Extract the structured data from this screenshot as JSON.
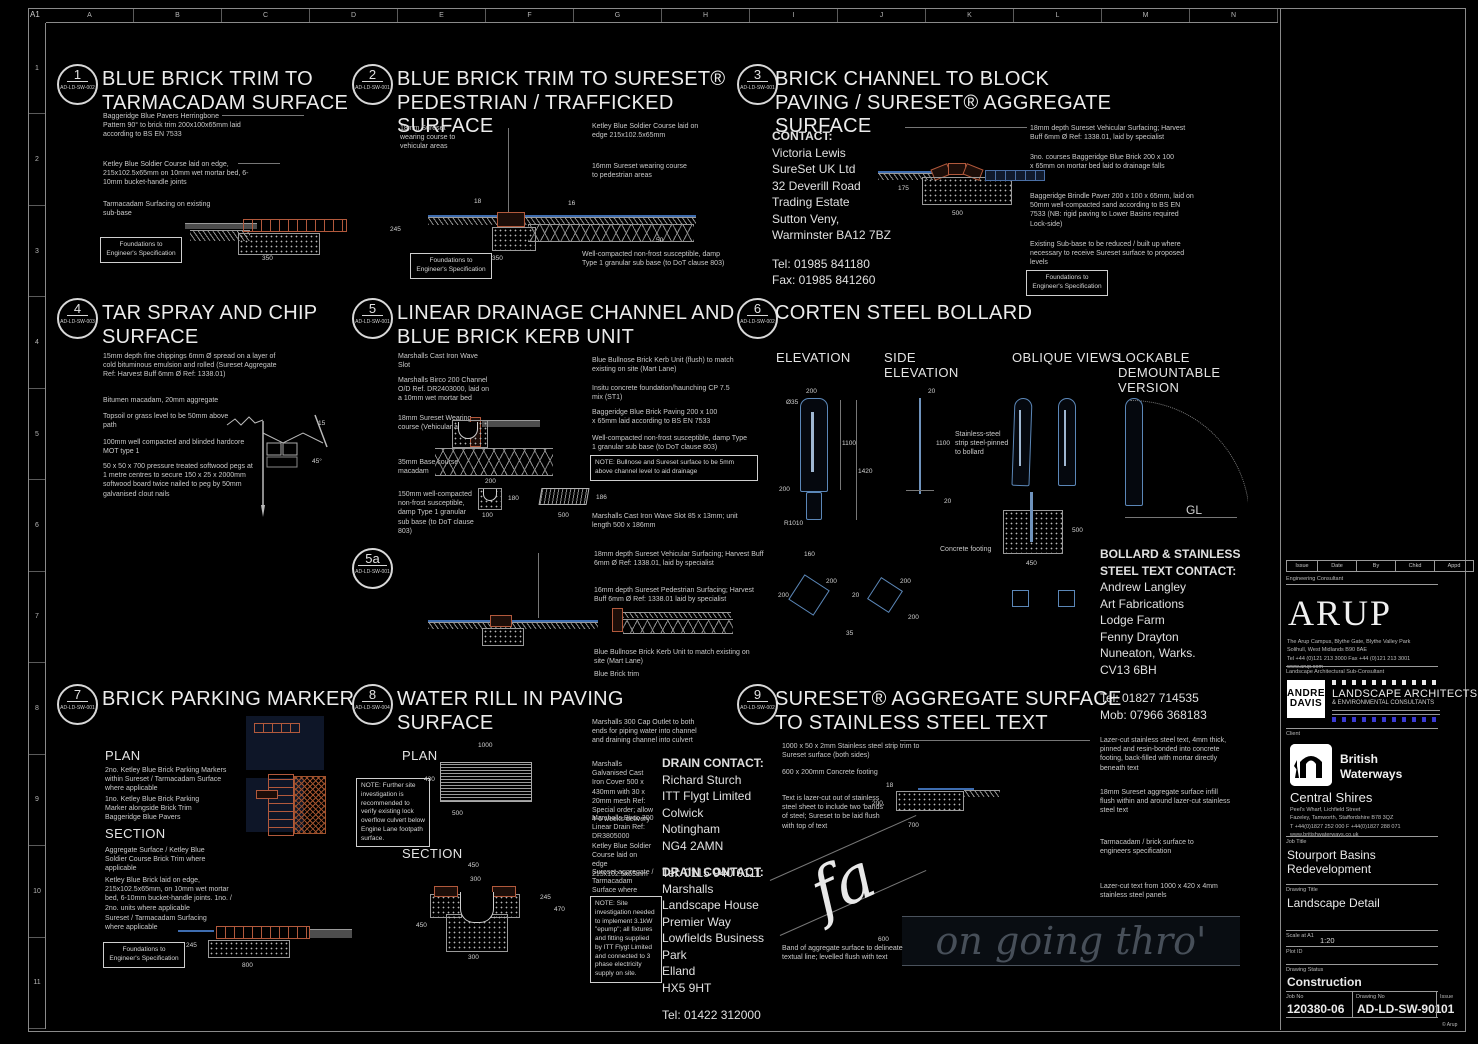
{
  "sheet": {
    "corner_label": "A1",
    "top_letters": [
      "A",
      "B",
      "C",
      "D",
      "E",
      "F",
      "G",
      "H",
      "I",
      "J",
      "K",
      "L",
      "M",
      "N"
    ],
    "left_numbers": [
      "1",
      "2",
      "3",
      "4",
      "5",
      "6",
      "7",
      "8",
      "9",
      "10",
      "11"
    ],
    "copyright": "© Arup"
  },
  "common": {
    "foundations": "Foundations to Engineer's Specification"
  },
  "panels": {
    "p1": {
      "num": "1",
      "code": "AD-LD-SW-002",
      "title": "BLUE BRICK TRIM TO TARMACADAM SURFACE",
      "notes": [
        "Baggeridge Blue Pavers Herringbone Pattern 90° to brick trim 200x100x65mm laid according to BS EN 7533",
        "Ketley Blue Soldier Course laid on edge, 215x102.5x65mm on 10mm wet mortar bed, 6-10mm bucket-handle joints",
        "Tarmacadam Surfacing on existing sub-base"
      ],
      "dims": [
        "350"
      ]
    },
    "p2": {
      "num": "2",
      "code": "AD-LD-SW-001",
      "title": "BLUE BRICK TRIM TO SURESET® PEDESTRIAN / TRAFFICKED SURFACE",
      "notes": [
        "18mm Sureset wearing course to vehicular areas",
        "Ketley Blue Soldier Course laid on edge 215x102.5x65mm",
        "16mm Sureset wearing course to pedestrian areas",
        "Well-compacted non-frost susceptible, damp Type 1 granular sub base (to DoT clause 803)"
      ],
      "dims": [
        "18",
        "16",
        "245",
        "350",
        "50"
      ]
    },
    "p3": {
      "num": "3",
      "code": "AD-LD-SW-001",
      "title": "BRICK CHANNEL TO BLOCK PAVING / SURESET® AGGREGATE SURFACE",
      "contact_heading": "CONTACT:",
      "contact_lines": [
        "Victoria Lewis",
        "SureSet UK Ltd",
        "32 Deverill Road",
        "Trading Estate",
        "Sutton Veny,",
        "Warminster BA12 7BZ"
      ],
      "tel": "Tel: 01985 841180",
      "fax": "Fax: 01985 841260",
      "notes": [
        "18mm depth Sureset Vehicular Surfacing; Harvest Buff 6mm Ø Ref: 1338.01, laid by specialist",
        "3no. courses Baggeridge Blue Brick 200 x 100 x 65mm on mortar bed laid to drainage falls",
        "Baggeridge Brindle Paver 200 x 100 x 65mm, laid on 50mm well-compacted sand according to BS EN 7533 (NB: rigid paving to Lower Basins required Lock-side)",
        "Existing Sub-base to be reduced / built up where necessary to receive Sureset surface to proposed levels"
      ],
      "dims": [
        "175",
        "500"
      ]
    },
    "p4": {
      "num": "4",
      "code": "AD-LD-SW-003",
      "title": "TAR SPRAY AND CHIP SURFACE",
      "notes": [
        "15mm depth fine chippings 6mm Ø spread on a layer of cold bituminous emulsion and rolled (Sureset Aggregate Ref: Harvest Buff 6mm Ø Ref: 1338.01)",
        "Bitumen macadam, 20mm aggregate",
        "Topsoil or grass level to be 50mm above path",
        "100mm well compacted and blinded hardcore MOT type 1",
        "50 x 50 x 700 pressure treated softwood pegs at 1 metre centres to secure 150 x 25 x 2000mm softwood board twice nailed to peg by 50mm galvanised clout nails"
      ],
      "dims": [
        "15",
        "45°"
      ]
    },
    "p5": {
      "num": "5",
      "code": "AD-LD-SW-001",
      "title": "LINEAR DRAINAGE CHANNEL AND BLUE BRICK KERB UNIT",
      "left_notes": [
        "Marshalls Cast Iron Wave Slot",
        "Marshalls Birco 200 Channel O/D Ref. DR2403000, laid on a 10mm wet mortar bed",
        "18mm Sureset Wearing course (Vehicular areas)",
        "35mm Base course macadam",
        "150mm well-compacted non-frost susceptible, damp Type 1 granular sub base (to DoT clause 803)"
      ],
      "right_notes": [
        "Blue Bullnose Brick Kerb Unit (flush) to match existing on site (Mart Lane)",
        "Insitu concrete foundation/haunching CP 7.5 mix (ST1)",
        "Baggeridge Blue Brick Paving 200 x 100 x 65mm laid according to BS EN 7533",
        "Well-compacted non-frost susceptible, damp Type 1 granular sub base (to DoT clause 803)"
      ],
      "note_box": "NOTE: Bullnose and Sureset surface to be 5mm above channel level to aid drainage",
      "caption": "Marshalls Cast Iron Wave Slot 85 x 13mm; unit length 500 x 186mm",
      "dims": [
        "200",
        "180",
        "100",
        "500",
        "186"
      ]
    },
    "p5a": {
      "num": "5a",
      "code": "AD-LD-SW-001",
      "notes": [
        "18mm depth Sureset Vehicular Surfacing; Harvest Buff 6mm Ø Ref: 1338.01, laid by specialist",
        "16mm depth Sureset Pedestrian Surfacing; Harvest Buff 6mm Ø Ref: 1338.01 laid by specialist",
        "Blue Bullnose Brick Kerb Unit to match existing on site (Mart Lane)",
        "Blue Brick trim"
      ]
    },
    "p6": {
      "num": "6",
      "code": "AD-LD-SW-002",
      "title": "CORTEN STEEL BOLLARD",
      "views": [
        "ELEVATION",
        "SIDE ELEVATION",
        "OBLIQUE VIEWS",
        "LOCKABLE DEMOUNTABLE VERSION"
      ],
      "labels": {
        "strip": "Stainless-steel strip steel-pinned to bollard",
        "footing": "Concrete footing",
        "gl": "GL"
      },
      "contact_heading": "BOLLARD & STAINLESS STEEL TEXT CONTACT:",
      "contact_lines": [
        "Andrew Langley",
        "Art Fabrications",
        "Lodge Farm",
        "Fenny Drayton",
        "Nuneaton, Warks.",
        "CV13 6BH"
      ],
      "tel": "Tel: 01827 714535",
      "mob": "Mob: 07966 368183",
      "dims": [
        "200",
        "Ø35",
        "1100",
        "1420",
        "200",
        "R1010",
        "160",
        "20",
        "1100",
        "20",
        "500",
        "450",
        "200",
        "200",
        "20",
        "200",
        "200",
        "35"
      ]
    },
    "p7": {
      "num": "7",
      "code": "AD-LD-SW-001",
      "title": "BRICK PARKING MARKERS",
      "plan_label": "PLAN",
      "section_label": "SECTION",
      "plan_notes": [
        "2no. Ketley Blue Brick Parking Markers within Sureset / Tarmacadam Surface where applicable",
        "1no. Ketley Blue Brick Parking Marker alongside Brick Trim",
        "Baggeridge Blue Pavers"
      ],
      "section_notes": [
        "Aggregate Surface / Ketley Blue Soldier Course Brick Trim where applicable",
        "Ketley Blue Brick laid on edge, 215x102.5x65mm, on 10mm wet mortar bed, 6-10mm bucket-handle joints. 1no. / 2no. units where applicable",
        "Sureset / Tarmacadam Surfacing where applicable"
      ],
      "dims": [
        "245",
        "800"
      ]
    },
    "p8": {
      "num": "8",
      "code": "AD-LD-SW-004",
      "title": "WATER RILL IN PAVING SURFACE",
      "plan_label": "PLAN",
      "section_label": "SECTION",
      "note_box_1": "NOTE: Further site investigation is recommended to verify existing lock overflow culvert below Engine Lane footpath surface.",
      "notes": [
        "Marshalls 300 Cap Outlet to both ends for piping water into channel and draining channel into culvert",
        "Marshalls Galvanised Cast Iron Cover 500 x 430mm with 30 x 20mm mesh Ref: Special order; allow 4-6 weeks delivery",
        "Marshalls Birco 300 Linear Drain Ref: DR3805000",
        "Ketley Blue Soldier Course laid on edge 215x102.5x65mm",
        "Sureset aggregate / Tarmacadam Surface where applicable"
      ],
      "note_box_2": "NOTE: Site investigation needed to implement 3.1kW \"epump\"; all fixtures and fitting supplied by ITT Flygt Limited and connected to 3 phase electricity supply on site.",
      "drain_contact_1": {
        "heading": "DRAIN CONTACT:",
        "lines": [
          "Richard Sturch",
          "ITT Flygt Limited",
          "Colwick",
          "Notingham",
          "NG4 2AMN"
        ],
        "tel": "Tel: 0115 940 0111"
      },
      "drain_contact_2": {
        "heading": "DRAIN CONTACT:",
        "lines": [
          "Marshalls",
          "Landscape House",
          "Premier Way",
          "Lowfields Business Park",
          "Elland",
          "HX5 9HT"
        ],
        "tel": "Tel: 01422 312000"
      },
      "dims": [
        "1000",
        "430",
        "500",
        "450",
        "300",
        "245",
        "470",
        "450",
        "300"
      ]
    },
    "p9": {
      "num": "9",
      "code": "AD-LD-SW-002",
      "title": "SURESET® AGGREGATE SURFACE TO STAINLESS STEEL TEXT",
      "left_notes": [
        "1000 x 50 x 2mm Stainless steel strip trim to Sureset surface (both sides)",
        "600 x 200mm Concrete footing",
        "Text is lazer-cut out of stainless steel sheet to include two 'bands' of steel; Sureset to be laid flush with top of text"
      ],
      "right_notes": [
        "Lazer-cut stainless steel text, 4mm thick, pinned and resin-bonded into concrete footing, back-filled with mortar directly beneath text",
        "18mm Sureset aggregate surface infill flush within and around lazer-cut stainless steel text",
        "Tarmacadam / brick surface to engineers specification",
        "Lazer-cut text from 1000 x 420 x 4mm stainless steel panels"
      ],
      "bottom_note": "Band of aggregate surface to delineate textual line; levelled flush with text",
      "script_text": "fa",
      "watermark": "on going thro'",
      "dims": [
        "18",
        "200",
        "700",
        "600"
      ]
    }
  },
  "titleblock": {
    "issue_cols": [
      "Issue",
      "Date",
      "By",
      "Chkd",
      "Appd"
    ],
    "engineering_label": "Engineering Consultant",
    "arup_logo": "ARUP",
    "arup_address": [
      "The Arup Campus, Blythe Gate, Blythe Valley Park",
      "Solihull, West Midlands B90 8AE",
      "Tel +44 (0)121 213 3000 Fax +44 (0)121 213 3001",
      "www.arup.com"
    ],
    "sub_consultant_label": "Landscape Architectural Sub-Consultant",
    "davis_logo_line1": "ANDREW",
    "davis_logo_line2": "DAVIS",
    "davis_title": "LANDSCAPE ARCHITECTS",
    "davis_subtitle": "& ENVIRONMENTAL CONSULTANTS",
    "client_label": "Client",
    "bw_name_1": "British",
    "bw_name_2": "Waterways",
    "bw_division": "Central Shires",
    "bw_address": [
      "Peel's Wharf, Lichfield Street",
      "Fazeley, Tamworth, Staffordshire B78 3QZ",
      "T +44(0)1827 252 000 F +44(0)1827 288 071",
      "www.britishwaterways.co.uk"
    ],
    "job_title_label": "Job Title",
    "job_title": "Stourport Basins Redevelopment",
    "drawing_title_label": "Drawing Title",
    "drawing_title": "Landscape Detail",
    "scale_label": "Scale at A1",
    "scale": "1:20",
    "plot_id_label": "Plot ID",
    "status_label": "Drawing Status",
    "status": "Construction",
    "job_no_label": "Job No",
    "job_no": "120380-06",
    "drawing_no_label": "Drawing No",
    "drawing_no": "AD-LD-SW-901",
    "issue_label": "Issue",
    "issue": "01"
  }
}
